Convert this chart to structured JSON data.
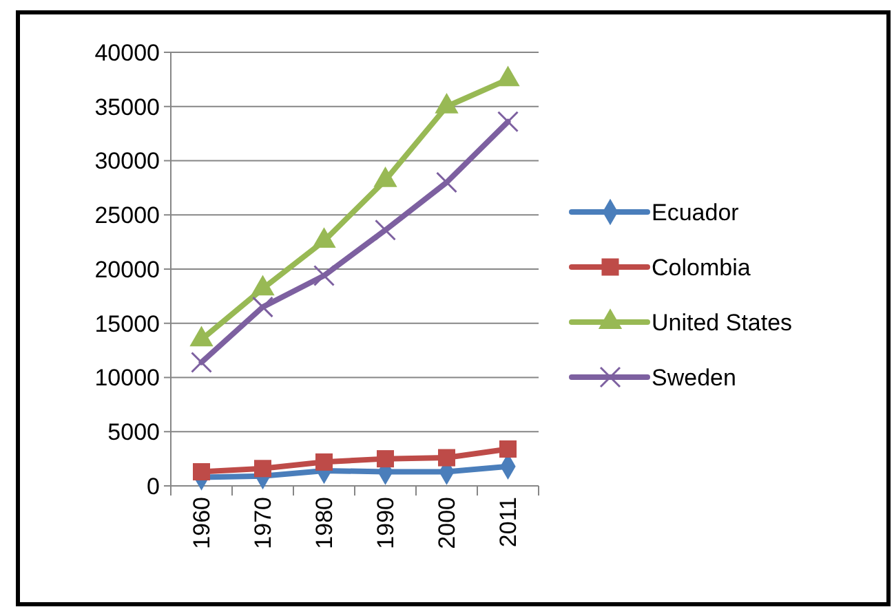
{
  "chart_data": {
    "type": "line",
    "categories": [
      "1960",
      "1970",
      "1980",
      "1990",
      "2000",
      "2011"
    ],
    "series": [
      {
        "name": "Ecuador",
        "color": "#4a7ebb",
        "marker": "diamond",
        "values": [
          800,
          900,
          1400,
          1300,
          1300,
          1800
        ]
      },
      {
        "name": "Colombia",
        "color": "#be4b48",
        "marker": "square",
        "values": [
          1300,
          1600,
          2200,
          2500,
          2600,
          3400
        ]
      },
      {
        "name": "United States",
        "color": "#98b954",
        "marker": "triangle",
        "values": [
          13500,
          18200,
          22600,
          28200,
          35000,
          37500
        ]
      },
      {
        "name": "Sweden",
        "color": "#7d60a0",
        "marker": "cross",
        "values": [
          11400,
          16500,
          19400,
          23600,
          28000,
          33600
        ]
      }
    ],
    "ylim": [
      0,
      40000
    ],
    "yticks": [
      0,
      5000,
      10000,
      15000,
      20000,
      25000,
      30000,
      35000,
      40000
    ],
    "grid": "y",
    "legend": "right"
  }
}
